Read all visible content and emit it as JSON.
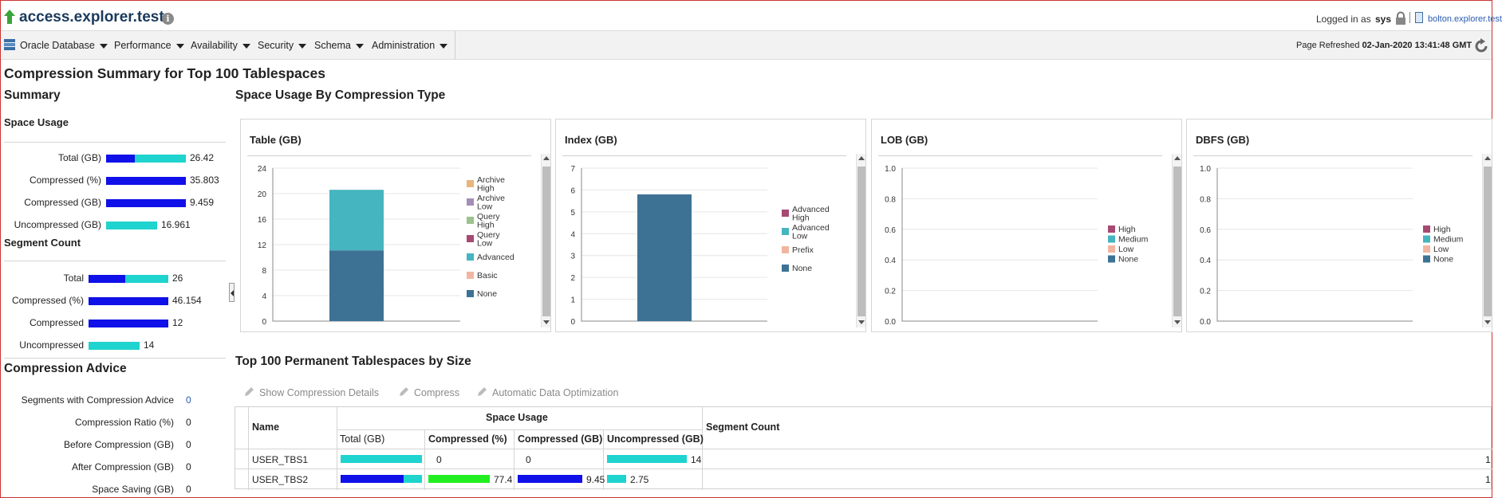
{
  "header": {
    "site_title": "access.explorer.test",
    "logged_in_label": "Logged in as",
    "user": "sys",
    "host": "bolton.explorer.test"
  },
  "menu": {
    "items": [
      "Oracle Database",
      "Performance",
      "Availability",
      "Security",
      "Schema",
      "Administration"
    ],
    "refresh_label": "Page Refreshed",
    "refresh_time": "02-Jan-2020 13:41:48 GMT"
  },
  "page_title": "Compression Summary for Top 100 Tablespaces",
  "summary": {
    "heading": "Summary",
    "space_usage": {
      "heading": "Space Usage",
      "rows": [
        {
          "label": "Total (GB)",
          "value": "26.42",
          "compressed_fraction": 0.358
        },
        {
          "label": "Compressed (%)",
          "value": "35.803",
          "compressed_fraction": 1.0
        },
        {
          "label": "Compressed (GB)",
          "value": "9.459",
          "compressed_fraction": 1.0
        },
        {
          "label": "Uncompressed (GB)",
          "value": "16.961",
          "compressed_fraction": 0.0
        }
      ]
    },
    "segment_count": {
      "heading": "Segment Count",
      "rows": [
        {
          "label": "Total",
          "value": "26",
          "compressed_fraction": 0.46
        },
        {
          "label": "Compressed (%)",
          "value": "46.154",
          "compressed_fraction": 1.0
        },
        {
          "label": "Compressed",
          "value": "12",
          "compressed_fraction": 1.0
        },
        {
          "label": "Uncompressed",
          "value": "14",
          "compressed_fraction": 0.0
        }
      ]
    }
  },
  "advice": {
    "heading": "Compression Advice",
    "rows": [
      {
        "label": "Segments with Compression Advice",
        "value": "0"
      },
      {
        "label": "Compression Ratio (%)",
        "value": "0"
      },
      {
        "label": "Before Compression (GB)",
        "value": "0"
      },
      {
        "label": "After Compression (GB)",
        "value": "0"
      },
      {
        "label": "Space Saving (GB)",
        "value": "0"
      }
    ]
  },
  "space_usage_heading": "Space Usage By Compression Type",
  "chart_data": [
    {
      "type": "bar",
      "title": "Table (GB)",
      "yticks": [
        "0",
        "4",
        "8",
        "12",
        "16",
        "20",
        "24"
      ],
      "ylim": [
        0,
        24
      ],
      "stack": [
        {
          "name": "None",
          "value": 11.1,
          "color": "#3d7294"
        },
        {
          "name": "Advanced",
          "value": 9.5,
          "color": "#45b5bf"
        }
      ],
      "legend": [
        {
          "label": "Archive High",
          "color": "#e8b57c"
        },
        {
          "label": "Archive Low",
          "color": "#a28fb8"
        },
        {
          "label": "Query High",
          "color": "#9cc28e"
        },
        {
          "label": "Query Low",
          "color": "#a64a72"
        },
        {
          "label": "Advanced",
          "color": "#45b5bf"
        },
        {
          "label": "Basic",
          "color": "#f2b6a0"
        },
        {
          "label": "None",
          "color": "#3d7294"
        }
      ]
    },
    {
      "type": "bar",
      "title": "Index (GB)",
      "yticks": [
        "0",
        "1",
        "2",
        "3",
        "4",
        "5",
        "6",
        "7"
      ],
      "ylim": [
        0,
        7
      ],
      "stack": [
        {
          "name": "None",
          "value": 5.8,
          "color": "#3d7294"
        }
      ],
      "legend": [
        {
          "label": "Advanced High",
          "color": "#a64a72"
        },
        {
          "label": "Advanced Low",
          "color": "#45b5bf"
        },
        {
          "label": "Prefix",
          "color": "#f2b6a0"
        },
        {
          "label": "None",
          "color": "#3d7294"
        }
      ]
    },
    {
      "type": "bar",
      "title": "LOB (GB)",
      "yticks": [
        "0.0",
        "0.2",
        "0.4",
        "0.6",
        "0.8",
        "1.0"
      ],
      "ylim": [
        0,
        1
      ],
      "stack": [],
      "legend": [
        {
          "label": "High",
          "color": "#a64a72"
        },
        {
          "label": "Medium",
          "color": "#45b5bf"
        },
        {
          "label": "Low",
          "color": "#f2b6a0"
        },
        {
          "label": "None",
          "color": "#3d7294"
        }
      ]
    },
    {
      "type": "bar",
      "title": "DBFS (GB)",
      "yticks": [
        "0.0",
        "0.2",
        "0.4",
        "0.6",
        "0.8",
        "1.0"
      ],
      "ylim": [
        0,
        1
      ],
      "stack": [],
      "legend": [
        {
          "label": "High",
          "color": "#a64a72"
        },
        {
          "label": "Medium",
          "color": "#45b5bf"
        },
        {
          "label": "Low",
          "color": "#f2b6a0"
        },
        {
          "label": "None",
          "color": "#3d7294"
        }
      ]
    }
  ],
  "tablespaces": {
    "heading": "Top 100 Permanent Tablespaces by Size",
    "toolbar": [
      "Show Compression Details",
      "Compress",
      "Automatic Data Optimization"
    ],
    "columns": {
      "name": "Name",
      "space_usage": "Space Usage",
      "total": "Total (GB)",
      "compressed_pct": "Compressed (%)",
      "compressed_gb": "Compressed (GB)",
      "uncompressed_gb": "Uncompressed (GB)",
      "segment_count": "Segment Count"
    },
    "rows": [
      {
        "name": "USER_TBS1",
        "total_compressed_fraction": 0.0,
        "compressed_pct": "0",
        "compressed_pct_fraction": 0.0,
        "compressed_gb": "0",
        "compressed_gb_fraction": 0.0,
        "uncompressed_gb": "14",
        "uncompressed_fraction": 1.0,
        "segment_count": "1"
      },
      {
        "name": "USER_TBS2",
        "total_compressed_fraction": 0.77,
        "compressed_pct": "77.4",
        "compressed_pct_fraction": 0.774,
        "compressed_gb": "9.45",
        "compressed_gb_fraction": 0.81,
        "uncompressed_gb": "2.75",
        "uncompressed_fraction": 0.24,
        "segment_count": "1"
      }
    ]
  },
  "colors": {
    "bar_compressed": "#1010e8",
    "bar_uncompressed": "#1fd3cf",
    "bar_pct": "#22ee22"
  }
}
